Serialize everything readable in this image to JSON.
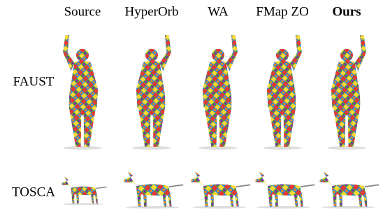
{
  "columns": [
    "Source",
    "HyperOrb",
    "WA",
    "FMap ZO",
    "Ours"
  ],
  "rows": [
    "FAUST",
    "TOSCA"
  ]
}
